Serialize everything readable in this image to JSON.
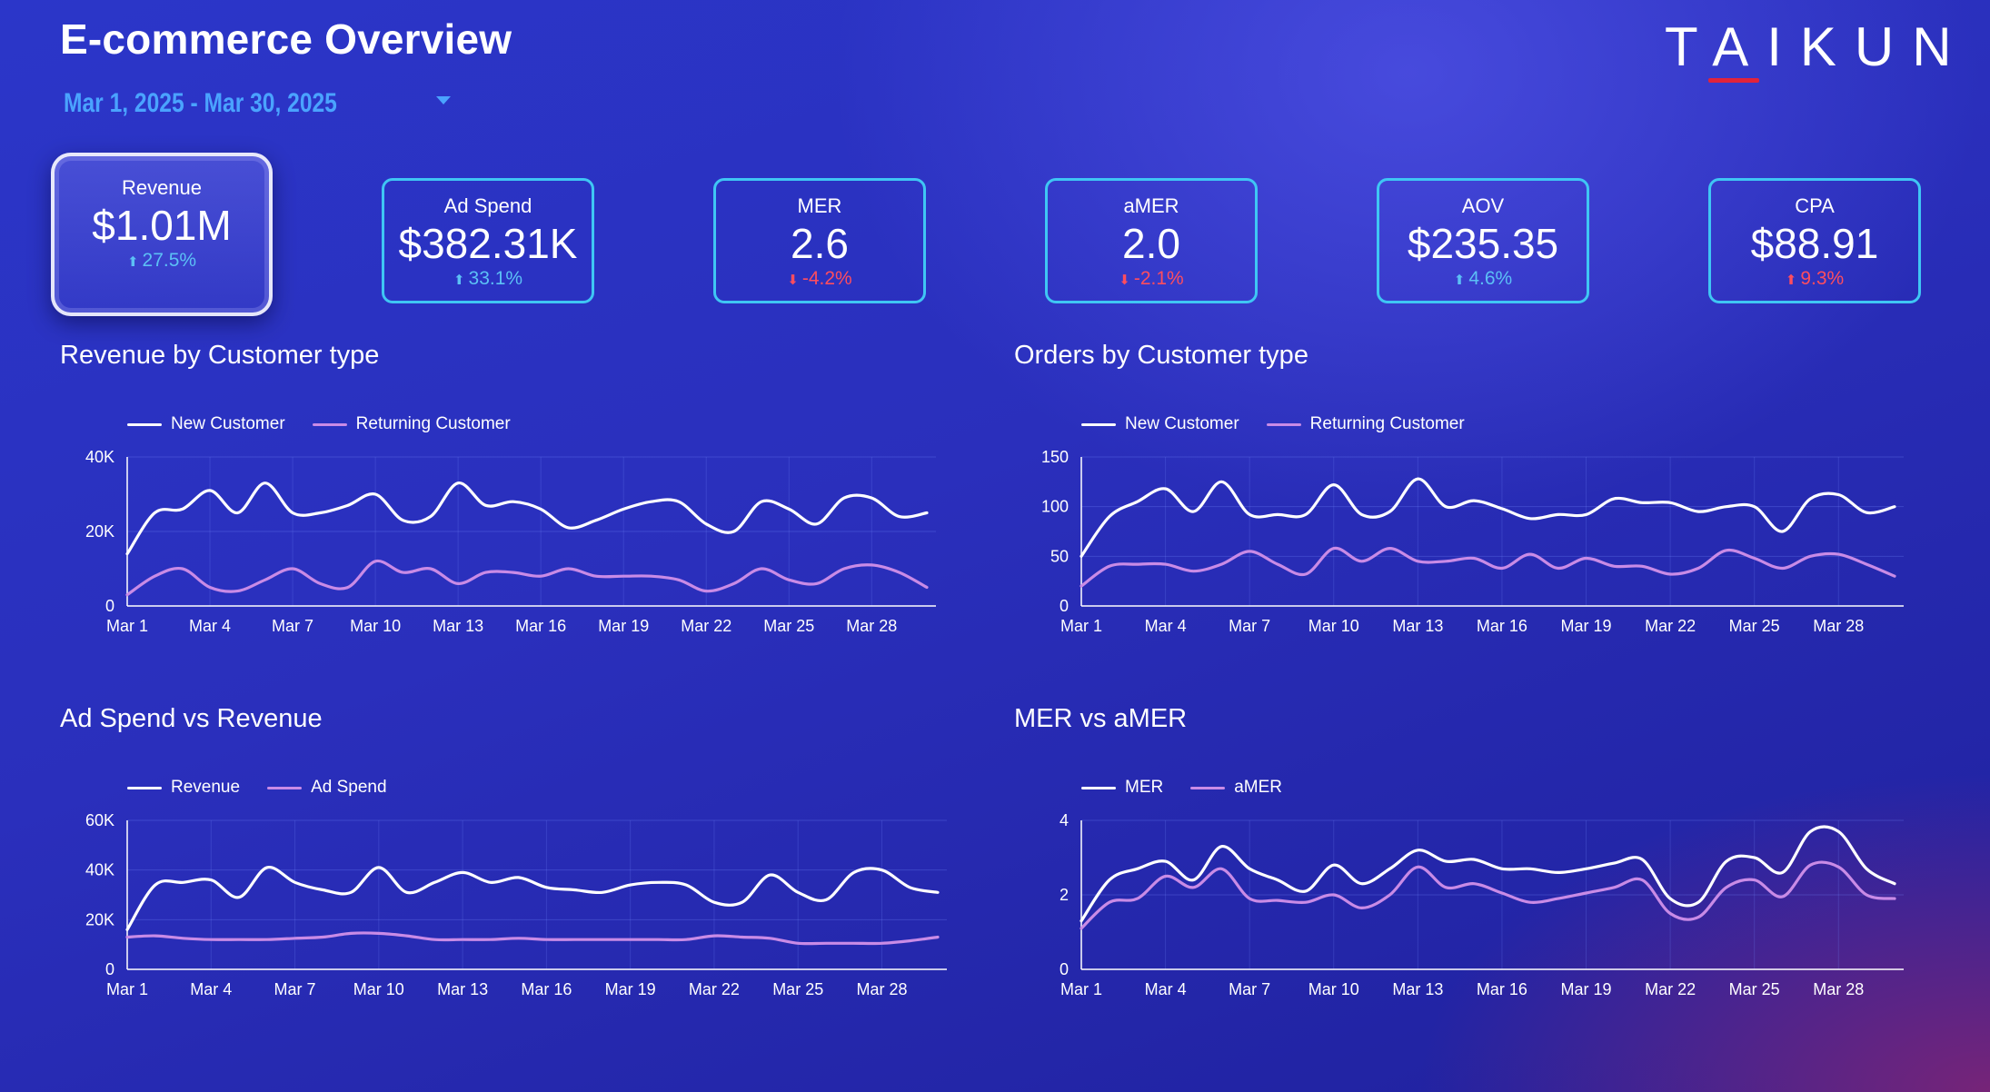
{
  "header": {
    "title": "E-commerce Overview",
    "date_range": "Mar 1, 2025 - Mar 30, 2025",
    "logo_text": "TAIKUN"
  },
  "colors": {
    "primary_line": "#ffffff",
    "secondary_line": "#c98be6",
    "positive": "#5cc0f5",
    "negative": "#ff4d5e",
    "card_border": "#3fc6f4"
  },
  "kpis": [
    {
      "label": "Revenue",
      "value": "$1.01M",
      "delta": "27.5%",
      "direction": "up",
      "sentiment": "positive"
    },
    {
      "label": "Ad Spend",
      "value": "$382.31K",
      "delta": "33.1%",
      "direction": "up",
      "sentiment": "positive"
    },
    {
      "label": "MER",
      "value": "2.6",
      "delta": "-4.2%",
      "direction": "down",
      "sentiment": "negative"
    },
    {
      "label": "aMER",
      "value": "2.0",
      "delta": "-2.1%",
      "direction": "down",
      "sentiment": "negative"
    },
    {
      "label": "AOV",
      "value": "$235.35",
      "delta": "4.6%",
      "direction": "up",
      "sentiment": "positive"
    },
    {
      "label": "CPA",
      "value": "$88.91",
      "delta": "9.3%",
      "direction": "up",
      "sentiment": "negative"
    }
  ],
  "chart_data": [
    {
      "type": "line",
      "title": "Revenue by Customer type",
      "x": [
        1,
        2,
        3,
        4,
        5,
        6,
        7,
        8,
        9,
        10,
        11,
        12,
        13,
        14,
        15,
        16,
        17,
        18,
        19,
        20,
        21,
        22,
        23,
        24,
        25,
        26,
        27,
        28,
        29,
        30
      ],
      "xticks": [
        "Mar 1",
        "Mar 4",
        "Mar 7",
        "Mar 10",
        "Mar 13",
        "Mar 16",
        "Mar 19",
        "Mar 22",
        "Mar 25",
        "Mar 28"
      ],
      "yticks": [
        "0",
        "20K",
        "40K"
      ],
      "ylim": [
        0,
        40000
      ],
      "series": [
        {
          "name": "New Customer",
          "values": [
            14000,
            25000,
            26000,
            31000,
            25000,
            33000,
            25000,
            25000,
            27000,
            30000,
            23000,
            24000,
            33000,
            27000,
            28000,
            26000,
            21000,
            23000,
            26000,
            28000,
            28000,
            22000,
            20000,
            28000,
            26000,
            22000,
            29000,
            29000,
            24000,
            25000
          ]
        },
        {
          "name": "Returning Customer",
          "values": [
            3000,
            8000,
            10000,
            5000,
            4000,
            7000,
            10000,
            6000,
            5000,
            12000,
            9000,
            10000,
            6000,
            9000,
            9000,
            8000,
            10000,
            8000,
            8000,
            8000,
            7000,
            4000,
            6000,
            10000,
            7000,
            6000,
            10000,
            11000,
            9000,
            5000
          ]
        }
      ]
    },
    {
      "type": "line",
      "title": "Orders by Customer type",
      "x": [
        1,
        2,
        3,
        4,
        5,
        6,
        7,
        8,
        9,
        10,
        11,
        12,
        13,
        14,
        15,
        16,
        17,
        18,
        19,
        20,
        21,
        22,
        23,
        24,
        25,
        26,
        27,
        28,
        29,
        30
      ],
      "xticks": [
        "Mar 1",
        "Mar 4",
        "Mar 7",
        "Mar 10",
        "Mar 13",
        "Mar 16",
        "Mar 19",
        "Mar 22",
        "Mar 25",
        "Mar 28"
      ],
      "yticks": [
        "0",
        "50",
        "100",
        "150"
      ],
      "ylim": [
        0,
        150
      ],
      "series": [
        {
          "name": "New Customer",
          "values": [
            50,
            90,
            105,
            118,
            95,
            125,
            92,
            92,
            92,
            122,
            92,
            95,
            128,
            100,
            106,
            98,
            88,
            92,
            92,
            108,
            104,
            104,
            95,
            100,
            100,
            75,
            108,
            112,
            94,
            100
          ]
        },
        {
          "name": "Returning Customer",
          "values": [
            20,
            40,
            42,
            42,
            35,
            42,
            55,
            42,
            32,
            58,
            45,
            58,
            45,
            45,
            48,
            38,
            52,
            38,
            48,
            40,
            40,
            32,
            38,
            56,
            48,
            38,
            50,
            52,
            42,
            30
          ]
        }
      ]
    },
    {
      "type": "line",
      "title": "Ad Spend vs Revenue",
      "x": [
        1,
        2,
        3,
        4,
        5,
        6,
        7,
        8,
        9,
        10,
        11,
        12,
        13,
        14,
        15,
        16,
        17,
        18,
        19,
        20,
        21,
        22,
        23,
        24,
        25,
        26,
        27,
        28,
        29,
        30
      ],
      "xticks": [
        "Mar 1",
        "Mar 4",
        "Mar 7",
        "Mar 10",
        "Mar 13",
        "Mar 16",
        "Mar 19",
        "Mar 22",
        "Mar 25",
        "Mar 28"
      ],
      "yticks": [
        "0",
        "20K",
        "40K",
        "60K"
      ],
      "ylim": [
        0,
        60000
      ],
      "series": [
        {
          "name": "Revenue",
          "values": [
            16000,
            34000,
            35000,
            36000,
            29000,
            41000,
            35000,
            32000,
            31000,
            41000,
            31000,
            35000,
            39000,
            35000,
            37000,
            33000,
            32000,
            31000,
            34000,
            35000,
            34000,
            27000,
            27000,
            38000,
            31000,
            28000,
            39000,
            40000,
            33000,
            31000
          ]
        },
        {
          "name": "Ad Spend",
          "values": [
            13000,
            13500,
            12500,
            12000,
            12000,
            12000,
            12500,
            13000,
            14500,
            14500,
            13500,
            12000,
            12000,
            12000,
            12500,
            12000,
            12000,
            12000,
            12000,
            12000,
            12000,
            13500,
            13000,
            12500,
            10500,
            10500,
            10500,
            10500,
            11500,
            13000
          ]
        }
      ]
    },
    {
      "type": "line",
      "title": "MER vs aMER",
      "x": [
        1,
        2,
        3,
        4,
        5,
        6,
        7,
        8,
        9,
        10,
        11,
        12,
        13,
        14,
        15,
        16,
        17,
        18,
        19,
        20,
        21,
        22,
        23,
        24,
        25,
        26,
        27,
        28,
        29,
        30
      ],
      "xticks": [
        "Mar 1",
        "Mar 4",
        "Mar 7",
        "Mar 10",
        "Mar 13",
        "Mar 16",
        "Mar 19",
        "Mar 22",
        "Mar 25",
        "Mar 28"
      ],
      "yticks": [
        "0",
        "2",
        "4"
      ],
      "ylim": [
        0,
        4
      ],
      "series": [
        {
          "name": "MER",
          "values": [
            1.3,
            2.4,
            2.7,
            2.9,
            2.4,
            3.3,
            2.7,
            2.4,
            2.1,
            2.8,
            2.3,
            2.7,
            3.2,
            2.9,
            2.95,
            2.7,
            2.7,
            2.6,
            2.7,
            2.85,
            2.95,
            1.9,
            1.8,
            2.9,
            3.0,
            2.6,
            3.7,
            3.7,
            2.7,
            2.3
          ]
        },
        {
          "name": "aMER",
          "values": [
            1.1,
            1.8,
            1.9,
            2.5,
            2.2,
            2.7,
            1.9,
            1.85,
            1.8,
            2.0,
            1.65,
            2.0,
            2.75,
            2.2,
            2.3,
            2.05,
            1.8,
            1.9,
            2.05,
            2.2,
            2.4,
            1.5,
            1.4,
            2.2,
            2.4,
            1.95,
            2.8,
            2.75,
            2.0,
            1.9
          ]
        }
      ]
    }
  ]
}
